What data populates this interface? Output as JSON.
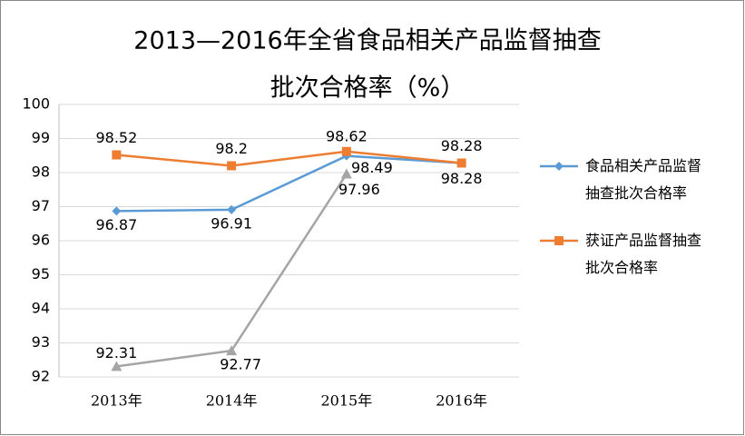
{
  "chart_data": {
    "type": "line",
    "title": [
      "2013—2016年全省食品相关产品监督抽查",
      "批次合格率（%）"
    ],
    "categories": [
      "2013年",
      "2014年",
      "2015年",
      "2016年"
    ],
    "series": [
      {
        "name": "食品相关产品监督抽查批次合格率",
        "color": "#5b9bd5",
        "values": [
          96.87,
          96.91,
          98.49,
          98.28
        ]
      },
      {
        "name": "获证产品监督抽查批次合格率",
        "color": "#ed7d31",
        "values": [
          98.52,
          98.2,
          98.62,
          98.28
        ]
      },
      {
        "color": "#a5a5a5",
        "values": [
          92.31,
          92.77,
          97.96,
          null
        ]
      }
    ],
    "ylim": [
      92,
      100
    ],
    "yticks": [
      92,
      93,
      94,
      95,
      96,
      97,
      98,
      99,
      100
    ],
    "grid": true,
    "legend": "right"
  }
}
